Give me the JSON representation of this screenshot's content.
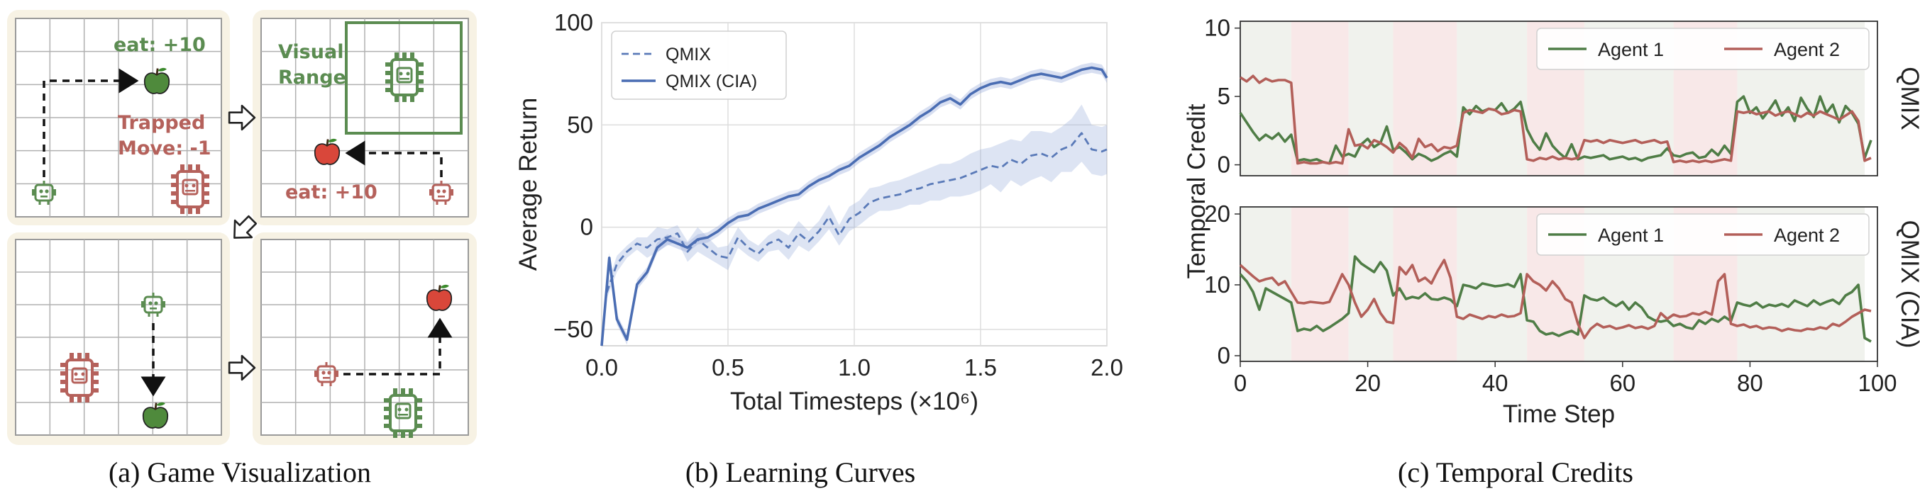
{
  "captions": {
    "a": "(a) Game Visualization",
    "b": "(b) Learning Curves",
    "c": "(c) Temporal Credits"
  },
  "game": {
    "eat_reward_1": "eat: +10",
    "trapped_line1": "Trapped",
    "trapped_line2": "Move: -1",
    "visual_line1": "Visual",
    "visual_line2": "Range",
    "eat_reward_2": "eat: +10",
    "colors": {
      "green_agent": "#5b8c51",
      "red_agent": "#b5615b",
      "apple_green": "#4f8a3c",
      "apple_red": "#d9473a",
      "panel_bg": "#f7f2e4"
    },
    "icons": [
      "robot-icon",
      "apple-icon",
      "arrow-right-icon"
    ]
  },
  "chart_data": [
    {
      "type": "line",
      "panel": "b",
      "xlabel": "Total Timesteps (×10⁶)",
      "ylabel": "Average Return",
      "xlim": [
        0.0,
        2.0
      ],
      "ylim": [
        -58,
        100
      ],
      "xticks": [
        "0.0",
        "0.5",
        "1.0",
        "1.5",
        "2.0"
      ],
      "yticks": [
        "−50",
        "0",
        "50",
        "100"
      ],
      "grid": true,
      "legend_position": "top-left",
      "series": [
        {
          "name": "QMIX",
          "style": "dashed",
          "color": "#5a7ab8",
          "x": [
            0.02,
            0.06,
            0.1,
            0.14,
            0.18,
            0.22,
            0.26,
            0.3,
            0.34,
            0.38,
            0.42,
            0.46,
            0.5,
            0.54,
            0.58,
            0.62,
            0.66,
            0.7,
            0.74,
            0.78,
            0.82,
            0.86,
            0.9,
            0.94,
            0.98,
            1.02,
            1.06,
            1.1,
            1.14,
            1.18,
            1.22,
            1.26,
            1.3,
            1.34,
            1.38,
            1.42,
            1.46,
            1.5,
            1.54,
            1.58,
            1.62,
            1.66,
            1.7,
            1.74,
            1.78,
            1.82,
            1.86,
            1.9,
            1.94,
            1.98,
            2.0
          ],
          "values": [
            -32,
            -18,
            -12,
            -8,
            -10,
            -6,
            -5,
            -3,
            -12,
            -6,
            -10,
            -14,
            -15,
            -5,
            -10,
            -13,
            -8,
            -6,
            -10,
            -3,
            -7,
            -2,
            5,
            -4,
            4,
            7,
            12,
            14,
            15,
            16,
            18,
            19,
            21,
            22,
            23,
            24,
            26,
            28,
            30,
            29,
            33,
            31,
            35,
            36,
            34,
            38,
            40,
            46,
            38,
            37,
            38
          ]
        },
        {
          "name": "QMIX (CIA)",
          "style": "solid",
          "color": "#4a6db3",
          "x": [
            0.0,
            0.03,
            0.06,
            0.1,
            0.14,
            0.18,
            0.22,
            0.26,
            0.3,
            0.34,
            0.38,
            0.42,
            0.46,
            0.5,
            0.54,
            0.58,
            0.62,
            0.66,
            0.7,
            0.74,
            0.78,
            0.82,
            0.86,
            0.9,
            0.94,
            0.98,
            1.02,
            1.06,
            1.1,
            1.14,
            1.18,
            1.22,
            1.26,
            1.3,
            1.34,
            1.38,
            1.42,
            1.46,
            1.5,
            1.54,
            1.58,
            1.62,
            1.66,
            1.7,
            1.74,
            1.78,
            1.82,
            1.86,
            1.9,
            1.94,
            1.98,
            2.0
          ],
          "values": [
            -58,
            -15,
            -45,
            -55,
            -28,
            -22,
            -10,
            -6,
            -8,
            -10,
            -6,
            -5,
            -2,
            2,
            5,
            6,
            9,
            11,
            13,
            15,
            16,
            20,
            23,
            25,
            28,
            30,
            34,
            37,
            40,
            44,
            47,
            50,
            54,
            57,
            61,
            63,
            60,
            65,
            68,
            70,
            71,
            70,
            72,
            74,
            75,
            74,
            73,
            75,
            77,
            78,
            77,
            73
          ]
        }
      ]
    },
    {
      "type": "line",
      "panel": "c-top",
      "row_label": "QMIX",
      "xlim": [
        0,
        100
      ],
      "ylim": [
        -0.8,
        10.5
      ],
      "yticks": [
        "0",
        "5",
        "10"
      ],
      "legend_position": "top-right",
      "shaded_segments": [
        [
          0,
          8,
          "green"
        ],
        [
          8,
          17,
          "red"
        ],
        [
          17,
          24,
          "green"
        ],
        [
          24,
          34,
          "red"
        ],
        [
          34,
          45,
          "green"
        ],
        [
          45,
          54,
          "red"
        ],
        [
          54,
          68,
          "green"
        ],
        [
          68,
          78,
          "red"
        ],
        [
          78,
          98,
          "green"
        ]
      ],
      "series": [
        {
          "name": "Agent 1",
          "color": "#4f7d46",
          "values": [
            3.8,
            3.1,
            2.4,
            1.8,
            2.2,
            1.9,
            2.3,
            1.7,
            2.2,
            0.3,
            0.4,
            0.3,
            0.4,
            0.2,
            0.1,
            1.4,
            0.6,
            0.8,
            0.6,
            1.5,
            1.9,
            1.3,
            1.6,
            2.8,
            1.1,
            1.3,
            0.9,
            0.4,
            0.8,
            0.6,
            0.3,
            0.5,
            0.8,
            1.0,
            0.6,
            4.2,
            3.7,
            4.3,
            3.9,
            4.1,
            4.0,
            4.5,
            3.8,
            4.1,
            4.6,
            2.6,
            1.7,
            1.1,
            2.3,
            1.4,
            0.9,
            0.5,
            1.5,
            0.4,
            0.6,
            0.5,
            0.6,
            0.7,
            0.4,
            0.5,
            0.6,
            0.4,
            0.5,
            0.3,
            0.5,
            0.6,
            0.7,
            1.2,
            0.7,
            0.6,
            0.8,
            0.9,
            0.5,
            0.6,
            1.1,
            0.7,
            1.4,
            0.8,
            4.6,
            5.0,
            3.8,
            4.2,
            3.4,
            4.0,
            4.7,
            3.6,
            4.2,
            3.2,
            4.9,
            4.1,
            3.5,
            5.0,
            3.8,
            4.4,
            3.1,
            4.3,
            3.8,
            3.0,
            0.5,
            1.8
          ]
        },
        {
          "name": "Agent 2",
          "color": "#b35f59",
          "values": [
            6.4,
            6.1,
            6.5,
            6.0,
            6.3,
            6.1,
            6.2,
            6.2,
            6.0,
            0.1,
            0.2,
            0.1,
            0.1,
            0.2,
            0.1,
            0.2,
            0.1,
            2.6,
            1.4,
            1.5,
            1.2,
            1.8,
            1.6,
            1.3,
            0.9,
            1.6,
            1.2,
            0.5,
            1.9,
            1.3,
            1.5,
            1.0,
            1.3,
            1.2,
            1.4,
            3.8,
            4.0,
            3.9,
            3.8,
            4.1,
            4.0,
            3.7,
            3.8,
            4.0,
            3.9,
            0.4,
            0.3,
            0.5,
            0.4,
            0.6,
            0.4,
            0.5,
            0.4,
            0.5,
            1.8,
            1.7,
            1.8,
            1.6,
            1.8,
            1.7,
            1.6,
            1.7,
            1.8,
            1.6,
            1.7,
            1.8,
            1.6,
            1.7,
            0.2,
            0.3,
            0.2,
            0.3,
            0.2,
            0.3,
            0.2,
            0.3,
            0.4,
            0.3,
            3.9,
            3.8,
            3.9,
            3.7,
            3.8,
            3.9,
            3.6,
            3.8,
            3.9,
            3.7,
            3.5,
            3.8,
            3.6,
            3.9,
            3.7,
            3.5,
            3.3,
            3.6,
            3.9,
            3.2,
            0.3,
            0.5
          ]
        }
      ]
    },
    {
      "type": "line",
      "panel": "c-bottom",
      "row_label": "QMIX (CIA)",
      "xlabel": "Time Step",
      "xlim": [
        0,
        100
      ],
      "ylim": [
        -0.8,
        21
      ],
      "xticks": [
        "0",
        "20",
        "40",
        "60",
        "80",
        "100"
      ],
      "yticks": [
        "0",
        "10",
        "20"
      ],
      "shared_ylabel": "Temporal Credit",
      "legend_position": "top-right",
      "shaded_segments": [
        [
          0,
          8,
          "green"
        ],
        [
          8,
          17,
          "red"
        ],
        [
          17,
          24,
          "green"
        ],
        [
          24,
          34,
          "red"
        ],
        [
          34,
          45,
          "green"
        ],
        [
          45,
          54,
          "red"
        ],
        [
          54,
          68,
          "green"
        ],
        [
          68,
          78,
          "red"
        ],
        [
          78,
          98,
          "green"
        ]
      ],
      "series": [
        {
          "name": "Agent 1",
          "color": "#4f7d46",
          "values": [
            11.5,
            10.5,
            9.0,
            6.5,
            9.5,
            9.0,
            8.5,
            8.0,
            7.5,
            3.5,
            3.8,
            3.6,
            4.2,
            3.5,
            4.0,
            4.6,
            5.2,
            6.0,
            14.0,
            13.0,
            12.4,
            11.8,
            13.2,
            12.0,
            8.5,
            9.5,
            8.0,
            8.3,
            8.1,
            8.8,
            8.0,
            7.9,
            8.2,
            7.9,
            7.0,
            10.0,
            9.8,
            9.5,
            10.2,
            10.0,
            9.8,
            9.9,
            10.1,
            9.7,
            11.5,
            5.0,
            4.8,
            3.5,
            3.0,
            3.2,
            2.8,
            3.2,
            3.5,
            3.0,
            8.5,
            8.0,
            7.8,
            8.2,
            7.5,
            7.0,
            7.6,
            6.5,
            7.5,
            6.8,
            5.5,
            5.0,
            4.8,
            5.0,
            4.2,
            4.5,
            4.0,
            3.8,
            5.0,
            4.5,
            5.2,
            4.8,
            5.5,
            4.9,
            7.5,
            7.2,
            7.0,
            7.5,
            6.8,
            7.2,
            7.0,
            7.3,
            6.9,
            7.8,
            7.4,
            7.0,
            7.8,
            7.2,
            7.6,
            7.9,
            7.3,
            8.5,
            9.0,
            10.0,
            2.5,
            2.0
          ]
        },
        {
          "name": "Agent 2",
          "color": "#b35f59",
          "values": [
            12.8,
            12.0,
            11.2,
            10.5,
            10.8,
            11.0,
            10.0,
            10.5,
            9.0,
            7.5,
            7.4,
            7.6,
            7.5,
            7.4,
            7.6,
            9.5,
            11.5,
            10.0,
            7.5,
            5.5,
            6.5,
            8.0,
            6.0,
            4.8,
            4.6,
            12.5,
            11.5,
            12.8,
            10.5,
            11.0,
            10.2,
            12.0,
            13.5,
            11.0,
            5.5,
            5.2,
            5.8,
            5.5,
            5.2,
            5.6,
            5.4,
            5.8,
            5.5,
            5.6,
            6.0,
            11.5,
            10.5,
            10.0,
            9.2,
            10.5,
            9.5,
            8.0,
            7.5,
            4.5,
            2.5,
            3.8,
            4.5,
            4.0,
            4.2,
            3.8,
            4.0,
            4.3,
            3.9,
            4.1,
            3.8,
            4.2,
            6.0,
            5.2,
            5.8,
            5.5,
            5.6,
            6.0,
            5.8,
            6.2,
            5.8,
            10.5,
            11.5,
            4.5,
            4.2,
            4.4,
            4.0,
            4.2,
            3.8,
            4.0,
            3.9,
            3.5,
            3.8,
            3.6,
            3.5,
            3.8,
            3.7,
            4.0,
            3.8,
            4.5,
            4.2,
            4.8,
            5.5,
            6.0,
            6.5,
            6.3
          ]
        }
      ]
    }
  ]
}
